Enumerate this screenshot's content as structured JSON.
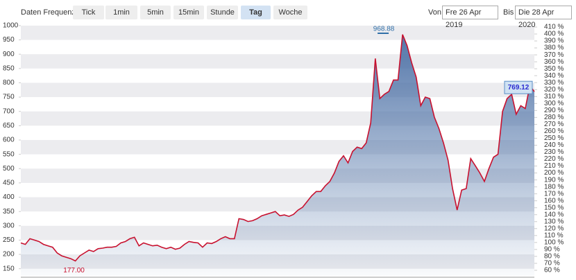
{
  "toolbar": {
    "frequency_label": "Daten Frequenz",
    "buttons": [
      "Tick",
      "1min",
      "5min",
      "15min",
      "Stunde",
      "Tag",
      "Woche"
    ],
    "active_button": "Tag",
    "from_label": "Von",
    "from_date": "Fre 26 Apr 2019",
    "to_label": "Bis",
    "to_date": "Die 28 Apr 2020"
  },
  "chart_data": {
    "type": "area",
    "color": "#c8102e",
    "fill_color": "#4a6fa5",
    "values": [
      240,
      235,
      255,
      250,
      245,
      235,
      230,
      225,
      205,
      195,
      190,
      185,
      177.0,
      195,
      205,
      215,
      210,
      220,
      222,
      225,
      225,
      228,
      240,
      245,
      255,
      260,
      230,
      240,
      235,
      230,
      232,
      225,
      220,
      225,
      218,
      222,
      235,
      245,
      242,
      240,
      225,
      240,
      238,
      245,
      255,
      262,
      255,
      255,
      325,
      322,
      315,
      318,
      325,
      335,
      340,
      345,
      350,
      335,
      338,
      333,
      340,
      355,
      365,
      385,
      405,
      420,
      420,
      440,
      455,
      485,
      525,
      545,
      520,
      560,
      575,
      570,
      590,
      660,
      885,
      745,
      760,
      770,
      810,
      810,
      968.88,
      930,
      870,
      820,
      720,
      750,
      745,
      680,
      640,
      590,
      530,
      430,
      355,
      425,
      430,
      535,
      510,
      485,
      455,
      500,
      540,
      550,
      700,
      745,
      760,
      690,
      720,
      710,
      790,
      769.12
    ],
    "high_label": "968.88",
    "low_label": "177.00",
    "last_label": "769.12",
    "ylim": [
      125,
      1012
    ],
    "yticks": [
      1000,
      950,
      900,
      850,
      800,
      750,
      700,
      650,
      600,
      550,
      500,
      450,
      400,
      350,
      300,
      250,
      200,
      150
    ],
    "y2lim": [
      52,
      417
    ],
    "y2ticks": [
      {
        "value": 410,
        "label": "410 %"
      },
      {
        "value": 400,
        "label": "400 %"
      },
      {
        "value": 390,
        "label": "390 %"
      },
      {
        "value": 380,
        "label": "380 %"
      },
      {
        "value": 370,
        "label": "370 %"
      },
      {
        "value": 360,
        "label": "360 %"
      },
      {
        "value": 350,
        "label": "350 %"
      },
      {
        "value": 340,
        "label": "340 %"
      },
      {
        "value": 330,
        "label": "330 %"
      },
      {
        "value": 320,
        "label": "320 %"
      },
      {
        "value": 310,
        "label": "310 %"
      },
      {
        "value": 300,
        "label": "300 %"
      },
      {
        "value": 290,
        "label": "290 %"
      },
      {
        "value": 280,
        "label": "280 %"
      },
      {
        "value": 270,
        "label": "270 %"
      },
      {
        "value": 260,
        "label": "260 %"
      },
      {
        "value": 250,
        "label": "250 %"
      },
      {
        "value": 240,
        "label": "240 %"
      },
      {
        "value": 230,
        "label": "230 %"
      },
      {
        "value": 220,
        "label": "220 %"
      },
      {
        "value": 210,
        "label": "210 %"
      },
      {
        "value": 200,
        "label": "200 %"
      },
      {
        "value": 190,
        "label": "190 %"
      },
      {
        "value": 180,
        "label": "180 %"
      },
      {
        "value": 170,
        "label": "170 %"
      },
      {
        "value": 160,
        "label": "160 %"
      },
      {
        "value": 150,
        "label": "150 %"
      },
      {
        "value": 140,
        "label": "140 %"
      },
      {
        "value": 130,
        "label": "130 %"
      },
      {
        "value": 120,
        "label": "120 %"
      },
      {
        "value": 110,
        "label": "110 %"
      },
      {
        "value": 100,
        "label": "100 %"
      },
      {
        "value": 90,
        "label": "90 %"
      },
      {
        "value": 80,
        "label": "80 %"
      },
      {
        "value": 70,
        "label": "70 %"
      },
      {
        "value": 60,
        "label": "60 %"
      }
    ],
    "grid": true
  }
}
